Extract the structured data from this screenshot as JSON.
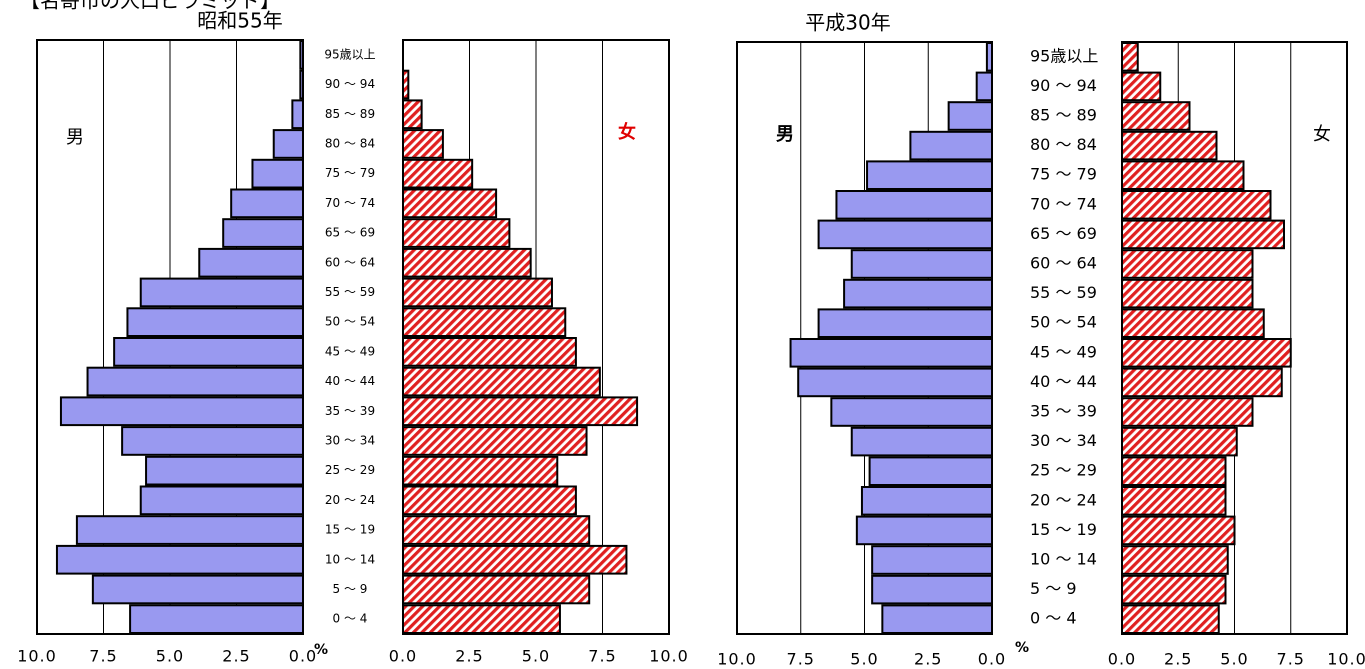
{
  "title": "【名寄市の人口ピラミッド】",
  "chart_data": [
    {
      "type": "pyramid",
      "title": "昭和55年",
      "unit": "%",
      "categories": [
        "95歳以上",
        "90 ～ 94",
        "85 ～ 89",
        "80 ～ 84",
        "75 ～ 79",
        "70 ～ 74",
        "65 ～ 69",
        "60 ～ 64",
        "55 ～ 59",
        "50 ～ 54",
        "45 ～ 49",
        "40 ～ 44",
        "35 ～ 39",
        "30 ～ 34",
        "25 ～ 29",
        "20 ～ 24",
        "15 ～ 19",
        "10 ～ 14",
        "5 ～ 9",
        "0 ～ 4"
      ],
      "series": [
        {
          "name": "男",
          "color": "#9999f0",
          "values": [
            0.1,
            0.1,
            0.4,
            1.1,
            1.9,
            2.7,
            3.0,
            3.9,
            6.1,
            6.6,
            7.1,
            8.1,
            9.1,
            6.8,
            5.9,
            6.1,
            8.5,
            9.25,
            7.9,
            6.5
          ]
        },
        {
          "name": "女",
          "color": "#e02020",
          "values": [
            0,
            0.2,
            0.7,
            1.5,
            2.6,
            3.5,
            4.0,
            4.8,
            5.6,
            6.1,
            6.5,
            7.4,
            8.8,
            6.9,
            5.8,
            6.5,
            7.0,
            8.4,
            7.0,
            5.9
          ]
        }
      ],
      "xlim": [
        0,
        10
      ],
      "xticks": [
        {
          "value": 0,
          "label": "0.0"
        },
        {
          "value": 2.5,
          "label": "2.5"
        },
        {
          "value": 5,
          "label": "5.0"
        },
        {
          "value": 7.5,
          "label": "7.5"
        },
        {
          "value": 10,
          "label": "10.0"
        }
      ],
      "grid": true
    },
    {
      "type": "pyramid",
      "title": "平成30年",
      "unit": "%",
      "categories": [
        "95歳以上",
        "90 ～ 94",
        "85 ～ 89",
        "80 ～ 84",
        "75 ～ 79",
        "70 ～ 74",
        "65 ～ 69",
        "60 ～ 64",
        "55 ～ 59",
        "50 ～ 54",
        "45 ～ 49",
        "40 ～ 44",
        "35 ～ 39",
        "30 ～ 34",
        "25 ～ 29",
        "20 ～ 24",
        "15 ～ 19",
        "10 ～ 14",
        "5 ～ 9",
        "0 ～ 4"
      ],
      "series": [
        {
          "name": "男",
          "color": "#9999f0",
          "values": [
            0.2,
            0.6,
            1.7,
            3.2,
            4.9,
            6.1,
            6.8,
            5.5,
            5.8,
            6.8,
            7.9,
            7.6,
            6.3,
            5.5,
            4.8,
            5.1,
            5.3,
            4.7,
            4.7,
            4.3
          ]
        },
        {
          "name": "女",
          "color": "#e02020",
          "values": [
            0.7,
            1.7,
            3.0,
            4.2,
            5.4,
            6.6,
            7.2,
            5.8,
            5.8,
            6.3,
            7.5,
            7.1,
            5.8,
            5.1,
            4.6,
            4.6,
            5.0,
            4.7,
            4.6,
            4.3
          ]
        }
      ],
      "xlim": [
        0,
        10
      ],
      "xticks": [
        {
          "value": 0,
          "label": "0.0"
        },
        {
          "value": 2.5,
          "label": "2.5"
        },
        {
          "value": 5,
          "label": "5.0"
        },
        {
          "value": 7.5,
          "label": "7.5"
        },
        {
          "value": 10,
          "label": "10.0"
        }
      ],
      "grid": true
    }
  ]
}
